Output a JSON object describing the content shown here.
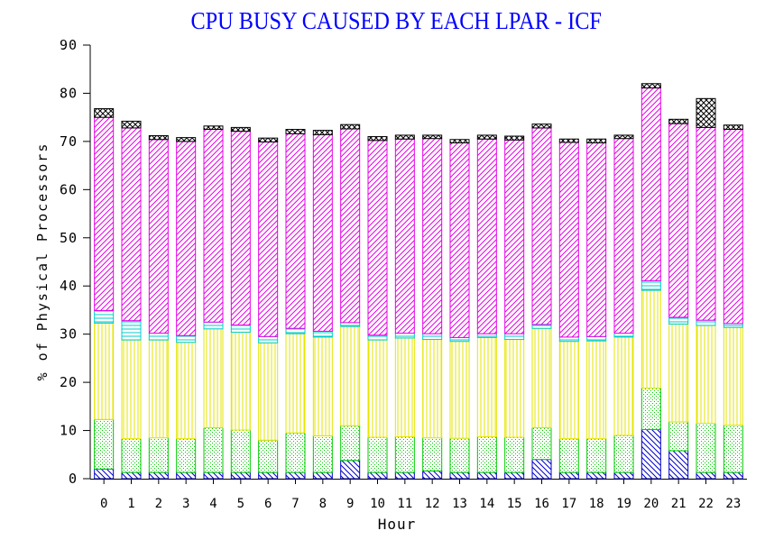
{
  "chart_data": {
    "type": "bar",
    "stacked": true,
    "title": "CPU BUSY CAUSED BY EACH LPAR - ICF",
    "xlabel": "Hour",
    "ylabel": "% of Physical Processors",
    "ylim": [
      0,
      90
    ],
    "yticks": [
      0,
      10,
      20,
      30,
      40,
      50,
      60,
      70,
      80,
      90
    ],
    "grid": false,
    "legend": "none",
    "categories": [
      "0",
      "1",
      "2",
      "3",
      "4",
      "5",
      "6",
      "7",
      "8",
      "9",
      "10",
      "11",
      "12",
      "13",
      "14",
      "15",
      "16",
      "17",
      "18",
      "19",
      "20",
      "21",
      "22",
      "23"
    ],
    "series": [
      {
        "color": "#0000cc",
        "pattern": "diag-back",
        "values": [
          2.0,
          1.3,
          1.3,
          1.3,
          1.3,
          1.3,
          1.3,
          1.3,
          1.3,
          3.8,
          1.3,
          1.3,
          1.6,
          1.3,
          1.3,
          1.3,
          4.0,
          1.3,
          1.3,
          1.3,
          10.2,
          5.8,
          1.3,
          1.3
        ]
      },
      {
        "color": "#00cc00",
        "pattern": "dots",
        "values": [
          10.3,
          7.0,
          7.2,
          7.0,
          9.3,
          8.8,
          6.7,
          8.2,
          7.6,
          7.2,
          7.3,
          7.4,
          6.9,
          7.1,
          7.4,
          7.3,
          6.6,
          7.0,
          7.0,
          7.7,
          8.6,
          6.0,
          10.2,
          9.8
        ]
      },
      {
        "color": "#e6e600",
        "pattern": "vertical",
        "values": [
          20.0,
          20.5,
          20.3,
          20.0,
          20.5,
          20.3,
          20.2,
          20.6,
          20.5,
          20.6,
          20.2,
          20.5,
          20.4,
          20.1,
          20.6,
          20.3,
          20.6,
          20.2,
          20.3,
          20.4,
          20.3,
          20.3,
          20.3,
          20.3
        ]
      },
      {
        "color": "#00cccc",
        "pattern": "horizontal",
        "values": [
          2.6,
          4.0,
          1.4,
          1.4,
          1.4,
          1.5,
          1.3,
          1.1,
          1.2,
          0.8,
          1.0,
          1.0,
          1.2,
          0.8,
          0.8,
          1.2,
          0.8,
          0.9,
          0.9,
          0.8,
          2.0,
          1.4,
          1.1,
          0.8
        ]
      },
      {
        "color": "#e600e6",
        "pattern": "diag-forward",
        "values": [
          40.1,
          40.0,
          40.2,
          40.3,
          40.0,
          40.2,
          40.4,
          40.4,
          40.8,
          40.2,
          40.4,
          40.3,
          40.5,
          40.4,
          40.4,
          40.2,
          40.8,
          40.4,
          40.2,
          40.4,
          40.0,
          40.2,
          40.0,
          40.3
        ]
      },
      {
        "color": "#000000",
        "pattern": "crosshatch",
        "values": [
          1.8,
          1.4,
          0.8,
          0.8,
          0.7,
          0.8,
          0.8,
          0.9,
          0.9,
          0.9,
          0.8,
          0.8,
          0.7,
          0.7,
          0.8,
          0.8,
          0.8,
          0.7,
          0.8,
          0.7,
          0.9,
          0.9,
          6.0,
          0.9
        ]
      }
    ]
  }
}
